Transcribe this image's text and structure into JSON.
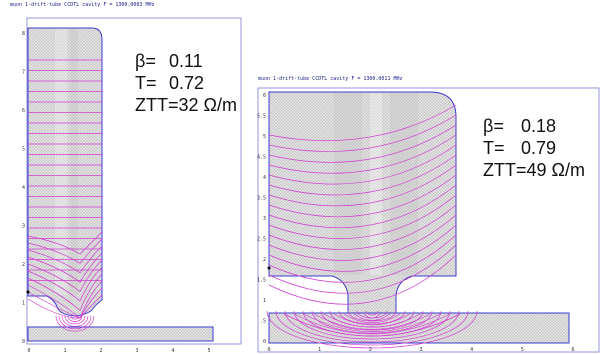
{
  "left_panel": {
    "title": "muon 1-drift-tube CCDTL cavity  F = 1300.0083 MHz",
    "params": {
      "beta_label": "β=",
      "beta_value": "0.11",
      "t_label": "T=",
      "t_value": "0.72",
      "ztt": "ZTT=32 Ω/m"
    },
    "y_ticks": [
      "8",
      "7",
      "6",
      "5",
      "4",
      "3",
      "2",
      "1",
      "0"
    ],
    "x_ticks": [
      "0",
      "1",
      "2",
      "3",
      "4",
      "5"
    ]
  },
  "right_panel": {
    "title": "muon 1-drift-tube CCDTL cavity  F = 1300.0011 MHz",
    "params": {
      "beta_label": "β=",
      "beta_value": "0.18",
      "t_label": "T=",
      "t_value": "0.79",
      "ztt": "ZTT=49 Ω/m"
    },
    "y_ticks": [
      "6",
      "5.5",
      "5",
      "4.5",
      "4",
      "3.5",
      "3",
      "2.5",
      "2",
      "1.5",
      "1",
      ".5",
      "0"
    ],
    "x_ticks": [
      "0",
      "1",
      "2",
      "3",
      "4",
      "5",
      "6"
    ]
  },
  "colors": {
    "boundary": "#3b3bd0",
    "field_lines": "#d23cd2",
    "mesh_fill": "#d9d9d9"
  }
}
